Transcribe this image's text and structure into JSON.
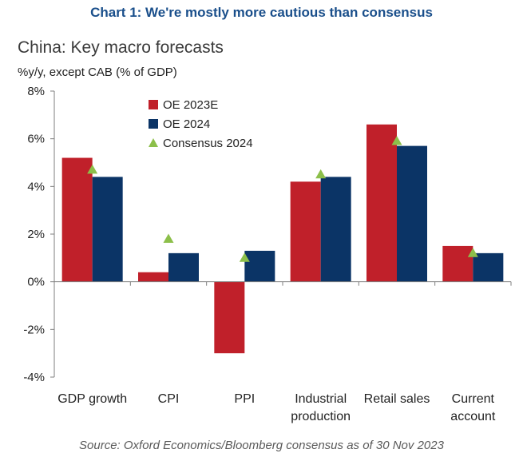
{
  "heading": "Chart 1: We're mostly more cautious than consensus",
  "chart_title": "China: Key macro forecasts",
  "unit_label": "%y/y, except CAB (% of GDP)",
  "source": "Source: Oxford Economics/Bloomberg consensus as of 30 Nov 2023",
  "colors": {
    "oe2023": "#c0202a",
    "oe2024": "#0b3466",
    "consensus": "#8cbf4a",
    "heading": "#1a4f8b"
  },
  "chart_data": {
    "type": "bar",
    "title": "China: Key macro forecasts",
    "ylabel": "%y/y, except CAB (% of GDP)",
    "ylim": [
      -4,
      8
    ],
    "yticks": [
      -4,
      -2,
      0,
      2,
      4,
      6,
      8
    ],
    "ytick_labels": [
      "-4%",
      "-2%",
      "0%",
      "2%",
      "4%",
      "6%",
      "8%"
    ],
    "categories": [
      [
        "GDP growth"
      ],
      [
        "CPI"
      ],
      [
        "PPI"
      ],
      [
        "Industrial",
        "production"
      ],
      [
        "Retail sales"
      ],
      [
        "Current",
        "account"
      ]
    ],
    "series": [
      {
        "name": "OE 2023E",
        "kind": "bar",
        "color": "#c0202a",
        "values": [
          5.2,
          0.4,
          -3.0,
          4.2,
          6.6,
          1.5
        ]
      },
      {
        "name": "OE 2024",
        "kind": "bar",
        "color": "#0b3466",
        "values": [
          4.4,
          1.2,
          1.3,
          4.4,
          5.7,
          1.2
        ]
      },
      {
        "name": "Consensus 2024",
        "kind": "marker",
        "color": "#8cbf4a",
        "values": [
          4.7,
          1.8,
          1.0,
          4.5,
          5.9,
          1.2
        ]
      }
    ],
    "legend_position": "top-left",
    "grid": false
  }
}
